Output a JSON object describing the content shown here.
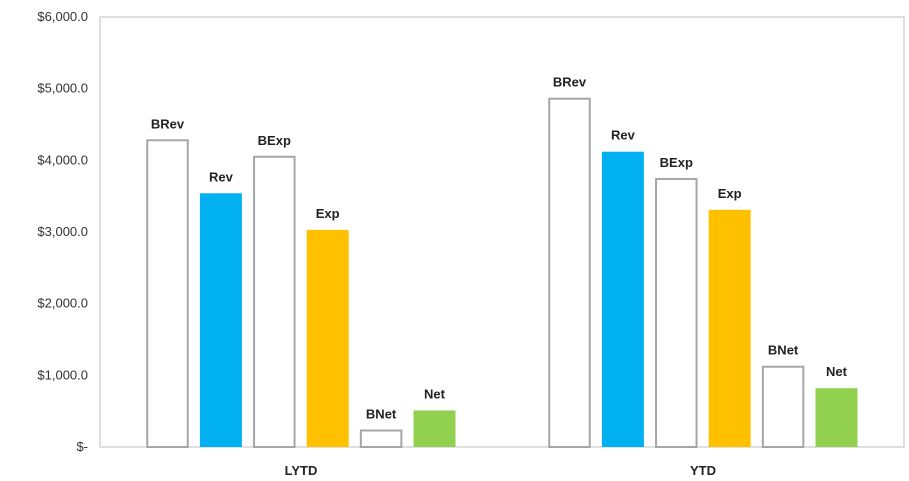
{
  "chart_data": {
    "type": "bar",
    "categories": [
      "LYTD",
      "YTD"
    ],
    "series": [
      {
        "name": "BRev",
        "values": [
          4280,
          4860
        ],
        "fill": "#ffffff",
        "stroke": "#a6a6a6"
      },
      {
        "name": "Rev",
        "values": [
          3540,
          4120
        ],
        "fill": "#00b0f0",
        "stroke": "#00b0f0"
      },
      {
        "name": "BExp",
        "values": [
          4050,
          3740
        ],
        "fill": "#ffffff",
        "stroke": "#a6a6a6"
      },
      {
        "name": "Exp",
        "values": [
          3030,
          3310
        ],
        "fill": "#ffc000",
        "stroke": "#ffc000"
      },
      {
        "name": "BNet",
        "values": [
          230,
          1120
        ],
        "fill": "#ffffff",
        "stroke": "#a6a6a6"
      },
      {
        "name": "Net",
        "values": [
          510,
          820
        ],
        "fill": "#92d050",
        "stroke": "#92d050"
      }
    ],
    "y_ticks": [
      0,
      1000,
      2000,
      3000,
      4000,
      5000,
      6000
    ],
    "y_tick_labels": [
      "$-",
      "$1,000.0",
      "$2,000.0",
      "$3,000.0",
      "$4,000.0",
      "$5,000.0",
      "$6,000.0"
    ],
    "ylim": [
      0,
      6000
    ],
    "title": "",
    "xlabel": "",
    "ylabel": "",
    "grid": false,
    "legend": "none",
    "data_labels": "series-name-above-bar"
  }
}
